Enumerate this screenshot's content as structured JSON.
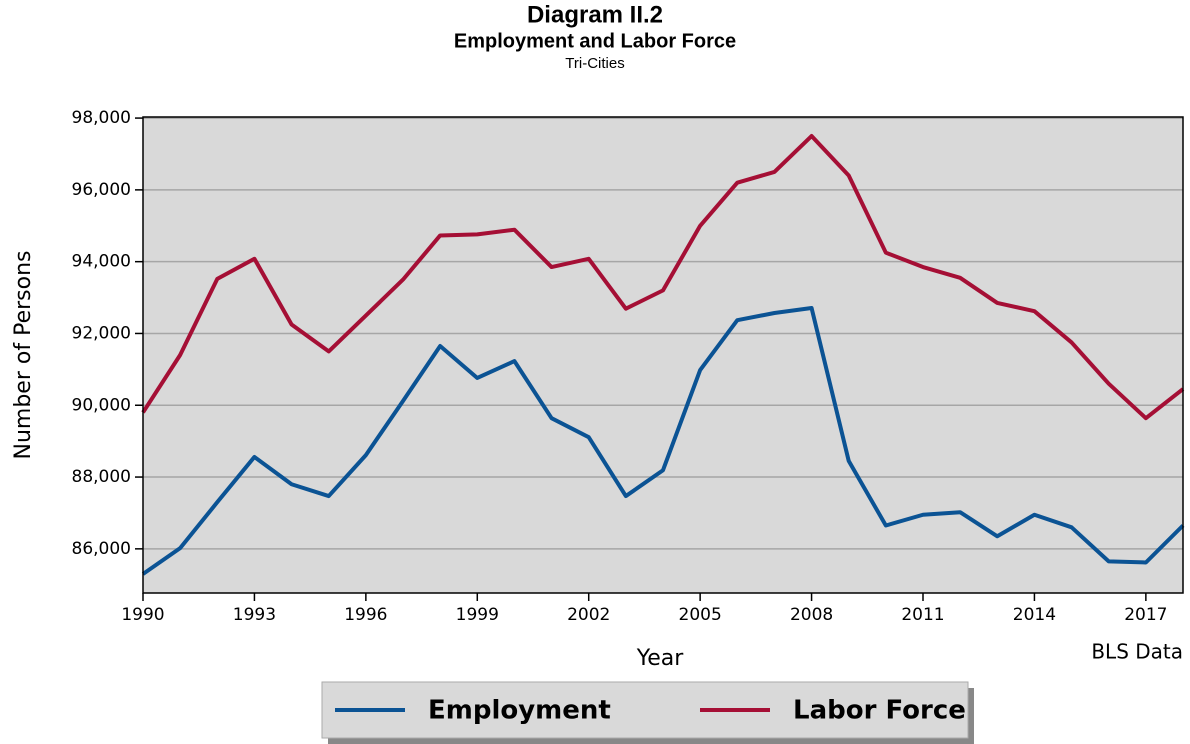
{
  "chart_data": {
    "type": "line",
    "title": "Diagram II.2",
    "subtitle": "Employment and Labor Force",
    "caption": "Tri-Cities",
    "x_label": "Year",
    "y_label": "Number of Persons",
    "source": "BLS Data",
    "x": [
      1990,
      1991,
      1992,
      1993,
      1994,
      1995,
      1996,
      1997,
      1998,
      1999,
      2000,
      2001,
      2002,
      2003,
      2004,
      2005,
      2006,
      2007,
      2008,
      2009,
      2010,
      2011,
      2012,
      2013,
      2014,
      2015,
      2016,
      2017,
      2018
    ],
    "series": [
      {
        "name": "Employment",
        "color": "#0b5394",
        "values": [
          85300,
          86020,
          87300,
          88560,
          87800,
          87470,
          88610,
          90120,
          91650,
          90760,
          91230,
          89640,
          89110,
          87470,
          88190,
          90980,
          92370,
          92570,
          92710,
          88450,
          86650,
          86950,
          87020,
          86350,
          86950,
          86600,
          85650,
          85620,
          86650
        ]
      },
      {
        "name": "Labor Force",
        "color": "#a50f35",
        "values": [
          89800,
          91400,
          93520,
          94080,
          92250,
          91500,
          92500,
          93500,
          94730,
          94760,
          94890,
          93850,
          94080,
          92690,
          93200,
          95000,
          96200,
          96500,
          97500,
          96400,
          94250,
          93850,
          93550,
          92850,
          92620,
          91750,
          90600,
          89640,
          90450
        ]
      }
    ],
    "xlim": [
      1990,
      2018
    ],
    "xticks": [
      1990,
      1993,
      1996,
      1999,
      2002,
      2005,
      2008,
      2011,
      2014,
      2017
    ],
    "ylim": [
      84770,
      98030
    ],
    "yticks": [
      {
        "value": 86000,
        "label": "86,000"
      },
      {
        "value": 88000,
        "label": "88,000"
      },
      {
        "value": 90000,
        "label": "90,000"
      },
      {
        "value": 92000,
        "label": "92,000"
      },
      {
        "value": 94000,
        "label": "94,000"
      },
      {
        "value": 96000,
        "label": "96,000"
      },
      {
        "value": 98000,
        "label": "98,000"
      }
    ],
    "grid": true,
    "legend": "bottom"
  }
}
